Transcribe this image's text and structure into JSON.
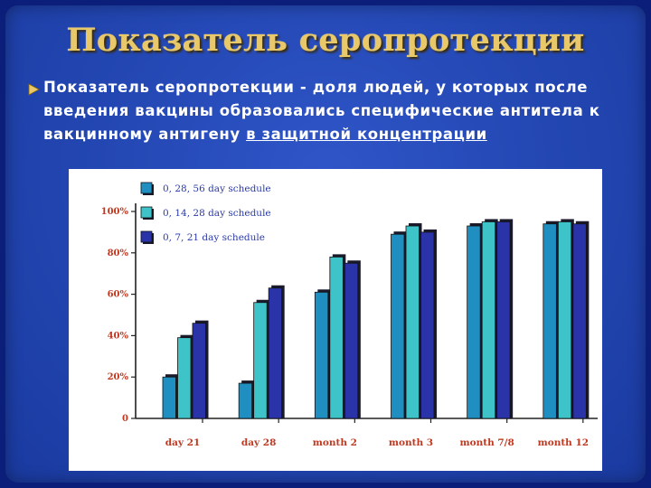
{
  "slide": {
    "title": "Показатель серопротекции",
    "paragraph_main": "Показатель серопротекции - доля людей, у которых после введения вакцины образовались специфические антитела к вакцинному антигену ",
    "paragraph_underlined": "в защитной концентрации"
  },
  "colors": {
    "background": "#2448b4",
    "title": "#e9c86a",
    "series": [
      "#1f8fc2",
      "#3ec4c8",
      "#2a34a8"
    ]
  },
  "chart_data": {
    "type": "bar",
    "categories": [
      "day 21",
      "day 28",
      "month 2",
      "month 3",
      "month 7/8",
      "month 12"
    ],
    "series": [
      {
        "name": "0, 28, 56 day schedule",
        "values": [
          20,
          17,
          61,
          89,
          93,
          94
        ]
      },
      {
        "name": "0, 14, 28 day schedule",
        "values": [
          39,
          56,
          78,
          93,
          95,
          95
        ]
      },
      {
        "name": "0, 7, 21 day schedule",
        "values": [
          46,
          63,
          75,
          90,
          95,
          94
        ]
      }
    ],
    "yticks": [
      "0",
      "20%",
      "40%",
      "60%",
      "80%",
      "100%"
    ],
    "ylim": [
      0,
      100
    ],
    "legend": "top-left",
    "grid": false
  }
}
